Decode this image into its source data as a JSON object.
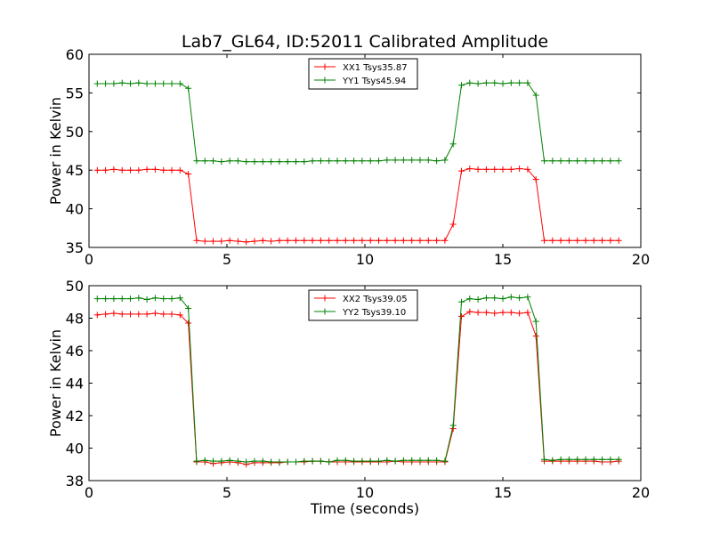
{
  "chart_data": [
    {
      "type": "line",
      "title": "Lab7_GL64, ID:52011 Calibrated Amplitude",
      "xlabel": "",
      "ylabel": "Power in Kelvin",
      "xlim": [
        0,
        20
      ],
      "ylim": [
        35,
        60
      ],
      "xticks": [
        "0",
        "5",
        "10",
        "15",
        "20"
      ],
      "yticks": [
        "35",
        "40",
        "45",
        "50",
        "55",
        "60"
      ],
      "legend_position": "top-center",
      "grid": false,
      "x": [
        0.3,
        0.6,
        0.9,
        1.2,
        1.5,
        1.8,
        2.1,
        2.4,
        2.7,
        3.0,
        3.3,
        3.6,
        3.9,
        4.2,
        4.5,
        4.8,
        5.1,
        5.4,
        5.7,
        6.0,
        6.3,
        6.6,
        6.9,
        7.2,
        7.5,
        7.8,
        8.1,
        8.4,
        8.7,
        9.0,
        9.3,
        9.6,
        9.9,
        10.2,
        10.5,
        10.8,
        11.1,
        11.4,
        11.7,
        12.0,
        12.3,
        12.6,
        12.9,
        13.2,
        13.5,
        13.8,
        14.1,
        14.4,
        14.7,
        15.0,
        15.3,
        15.6,
        15.9,
        16.2,
        16.5,
        16.8,
        17.1,
        17.4,
        17.7,
        18.0,
        18.3,
        18.6,
        18.9,
        19.2
      ],
      "series": [
        {
          "name": "XX1 Tsys35.87",
          "color": "#ff0000",
          "values": [
            45.0,
            45.0,
            45.1,
            45.0,
            45.0,
            45.0,
            45.1,
            45.1,
            45.0,
            45.0,
            45.0,
            44.5,
            35.9,
            35.8,
            35.8,
            35.8,
            35.9,
            35.8,
            35.7,
            35.8,
            35.9,
            35.8,
            35.9,
            35.9,
            35.9,
            35.9,
            35.9,
            35.9,
            35.9,
            35.9,
            35.9,
            35.9,
            35.9,
            35.9,
            35.9,
            35.9,
            35.9,
            35.9,
            35.9,
            35.9,
            35.9,
            35.9,
            35.9,
            38.0,
            44.9,
            45.2,
            45.1,
            45.1,
            45.1,
            45.1,
            45.1,
            45.2,
            45.1,
            43.8,
            35.9,
            35.9,
            35.9,
            35.9,
            35.9,
            35.9,
            35.9,
            35.9,
            35.9,
            35.9
          ]
        },
        {
          "name": "YY1 Tsys45.94",
          "color": "#008000",
          "values": [
            56.2,
            56.2,
            56.2,
            56.3,
            56.2,
            56.3,
            56.2,
            56.2,
            56.2,
            56.2,
            56.2,
            55.6,
            46.2,
            46.2,
            46.2,
            46.1,
            46.2,
            46.2,
            46.1,
            46.1,
            46.1,
            46.1,
            46.1,
            46.1,
            46.1,
            46.1,
            46.2,
            46.2,
            46.2,
            46.2,
            46.2,
            46.2,
            46.2,
            46.2,
            46.2,
            46.3,
            46.3,
            46.3,
            46.3,
            46.3,
            46.3,
            46.2,
            46.3,
            48.4,
            56.0,
            56.3,
            56.2,
            56.3,
            56.3,
            56.2,
            56.3,
            56.3,
            56.3,
            54.7,
            46.2,
            46.2,
            46.2,
            46.2,
            46.2,
            46.2,
            46.2,
            46.2,
            46.2,
            46.2
          ]
        }
      ]
    },
    {
      "type": "line",
      "title": "",
      "xlabel": "Time (seconds)",
      "ylabel": "Power in Kelvin",
      "xlim": [
        0,
        20
      ],
      "ylim": [
        38,
        50
      ],
      "xticks": [
        "0",
        "5",
        "10",
        "15",
        "20"
      ],
      "yticks": [
        "38",
        "40",
        "42",
        "44",
        "46",
        "48",
        "50"
      ],
      "legend_position": "top-center",
      "grid": false,
      "x": [
        0.3,
        0.6,
        0.9,
        1.2,
        1.5,
        1.8,
        2.1,
        2.4,
        2.7,
        3.0,
        3.3,
        3.6,
        3.9,
        4.2,
        4.5,
        4.8,
        5.1,
        5.4,
        5.7,
        6.0,
        6.3,
        6.6,
        6.9,
        7.2,
        7.5,
        7.8,
        8.1,
        8.4,
        8.7,
        9.0,
        9.3,
        9.6,
        9.9,
        10.2,
        10.5,
        10.8,
        11.1,
        11.4,
        11.7,
        12.0,
        12.3,
        12.6,
        12.9,
        13.2,
        13.5,
        13.8,
        14.1,
        14.4,
        14.7,
        15.0,
        15.3,
        15.6,
        15.9,
        16.2,
        16.5,
        16.8,
        17.1,
        17.4,
        17.7,
        18.0,
        18.3,
        18.6,
        18.9,
        19.2
      ],
      "series": [
        {
          "name": "XX2 Tsys39.05",
          "color": "#ff0000",
          "values": [
            48.2,
            48.25,
            48.3,
            48.25,
            48.25,
            48.25,
            48.25,
            48.3,
            48.25,
            48.25,
            48.2,
            47.7,
            39.15,
            39.15,
            39.05,
            39.1,
            39.15,
            39.1,
            39.0,
            39.1,
            39.1,
            39.1,
            39.1,
            39.15,
            39.15,
            39.15,
            39.2,
            39.2,
            39.15,
            39.15,
            39.15,
            39.15,
            39.15,
            39.15,
            39.15,
            39.15,
            39.2,
            39.15,
            39.15,
            39.15,
            39.15,
            39.15,
            39.15,
            41.2,
            48.1,
            48.4,
            48.35,
            48.35,
            48.3,
            48.35,
            48.35,
            48.3,
            48.35,
            46.9,
            39.2,
            39.2,
            39.2,
            39.2,
            39.2,
            39.2,
            39.2,
            39.15,
            39.15,
            39.2
          ]
        },
        {
          "name": "YY2 Tsys39.10",
          "color": "#008000",
          "values": [
            49.2,
            49.2,
            49.2,
            49.2,
            49.2,
            49.25,
            49.15,
            49.25,
            49.2,
            49.2,
            49.25,
            48.6,
            39.2,
            39.25,
            39.2,
            39.2,
            39.25,
            39.2,
            39.15,
            39.2,
            39.2,
            39.15,
            39.15,
            39.15,
            39.15,
            39.2,
            39.2,
            39.2,
            39.15,
            39.25,
            39.25,
            39.2,
            39.2,
            39.2,
            39.2,
            39.25,
            39.2,
            39.25,
            39.25,
            39.25,
            39.25,
            39.25,
            39.2,
            41.4,
            49.0,
            49.2,
            49.15,
            49.25,
            49.25,
            49.2,
            49.3,
            49.25,
            49.3,
            47.8,
            39.3,
            39.25,
            39.3,
            39.3,
            39.3,
            39.3,
            39.3,
            39.3,
            39.3,
            39.3
          ]
        }
      ]
    }
  ]
}
